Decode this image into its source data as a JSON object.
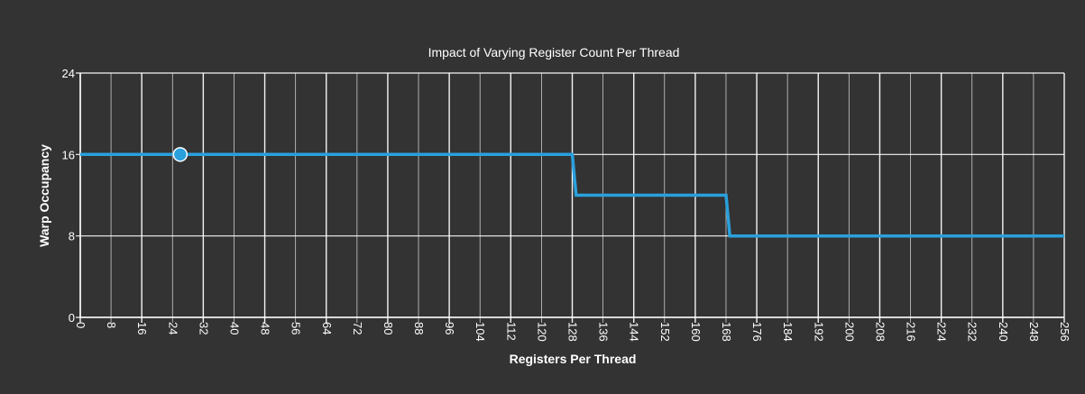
{
  "chart_data": {
    "type": "line",
    "title": "Impact of Varying Register Count Per Thread",
    "xlabel": "Registers Per Thread",
    "ylabel": "Warp Occupancy",
    "xlim": [
      0,
      256
    ],
    "ylim": [
      0,
      24
    ],
    "x_ticks": [
      0,
      8,
      16,
      24,
      32,
      40,
      48,
      56,
      64,
      72,
      80,
      88,
      96,
      104,
      112,
      120,
      128,
      136,
      144,
      152,
      160,
      168,
      176,
      184,
      192,
      200,
      208,
      216,
      224,
      232,
      240,
      248,
      256
    ],
    "x_tick_labels": [
      "0",
      "8",
      "16",
      "24",
      "32",
      "40",
      "48",
      "56",
      "64",
      "72",
      "80",
      "88",
      "96",
      "104",
      "112",
      "120",
      "128",
      "136",
      "144",
      "152",
      "160",
      "168",
      "176",
      "184",
      "192",
      "200",
      "208",
      "216",
      "224",
      "232",
      "240",
      "248",
      "256"
    ],
    "y_ticks": [
      0,
      8,
      16,
      24
    ],
    "y_tick_labels": [
      "0",
      "8",
      "16",
      "24"
    ],
    "grid": true,
    "series": [
      {
        "color": "#2aa0dc",
        "points": [
          [
            0,
            16
          ],
          [
            128,
            16
          ],
          [
            129,
            12
          ],
          [
            168,
            12
          ],
          [
            169,
            8
          ],
          [
            256,
            8
          ]
        ]
      }
    ],
    "highlight_point": {
      "x": 26,
      "y": 16,
      "color": "#2aa0dc"
    }
  },
  "colors": {
    "background": "#333333",
    "grid": "#ffffff",
    "text": "#ffffff",
    "series": "#2aa0dc"
  }
}
